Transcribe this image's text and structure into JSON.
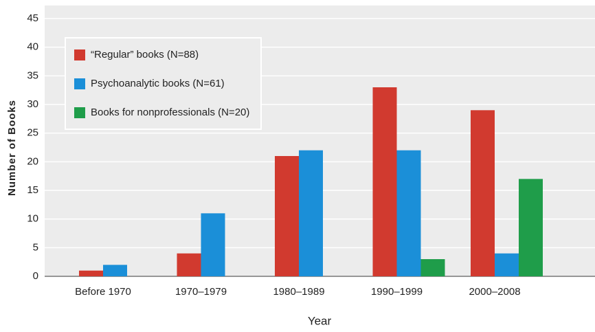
{
  "chart_data": {
    "type": "bar",
    "x_label": "Year",
    "y_label": "Number of Books",
    "categories": [
      "Before 1970",
      "1970–1979",
      "1980–1989",
      "1990–1999",
      "2000–2008"
    ],
    "series": [
      {
        "name": "“Regular” books (N=88)",
        "color": "#d13a2f",
        "values": [
          1,
          4,
          21,
          33,
          29
        ]
      },
      {
        "name": "Psychoanalytic books (N=61)",
        "color": "#1b8fd8",
        "values": [
          2,
          11,
          22,
          22,
          4
        ]
      },
      {
        "name": "Books for nonprofessionals (N=20)",
        "color": "#1f9d4a",
        "values": [
          0,
          0,
          0,
          3,
          17
        ]
      }
    ],
    "ylim": [
      0,
      45
    ],
    "yticks": [
      0,
      5,
      10,
      15,
      20,
      25,
      30,
      35,
      40,
      45
    ],
    "grid": true,
    "legend": "upper left"
  }
}
